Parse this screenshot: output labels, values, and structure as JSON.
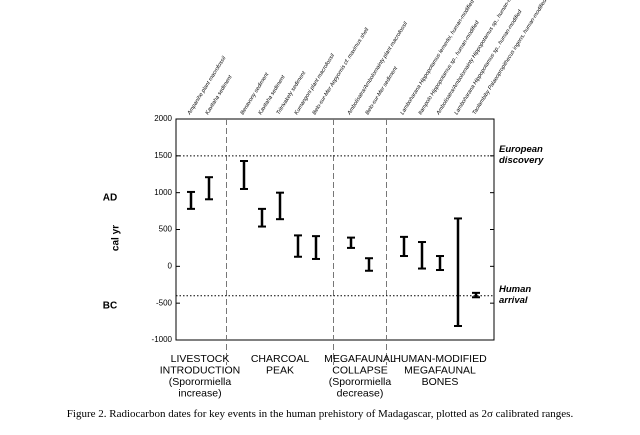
{
  "chart_data": {
    "type": "range",
    "categories": [
      "Ampanihe plant macrofossil",
      "Kavitaha sediment",
      "Benavony sediment",
      "Kavitaha sediment",
      "Tritrivakely sediment",
      "Kumangoni plant macrofossil",
      "Belo-sur-Mer Aepyornis cf. maximus shell",
      "Ambolisatra/Ambolomainty plant macrofossil",
      "Belo-sur-Mer sediment",
      "Lamboharana Hippopotamus lemerlei, human-modified",
      "Itampolo Hippopotamus sp., human-modified",
      "Ambolisatra/Ambolomainty Hippopotamus sp., human-modified",
      "Lamboharana Hippopotamus sp., human-modified",
      "Taolambiby Palaeopropithecus ingens, human-modified"
    ],
    "low": [
      780,
      910,
      1050,
      540,
      640,
      130,
      100,
      250,
      -60,
      140,
      -30,
      -50,
      -810,
      -420
    ],
    "high": [
      1010,
      1210,
      1430,
      780,
      1000,
      420,
      410,
      390,
      110,
      400,
      330,
      140,
      650,
      -360
    ],
    "color": "#000000",
    "ylim": [
      -1000,
      2000
    ],
    "yticks": [
      -1000,
      -500,
      0,
      500,
      1000,
      1500,
      2000
    ],
    "y_label": "cal yr",
    "era_labels": [
      "AD",
      "BC"
    ],
    "groups": [
      {
        "label": [
          "LIVESTOCK",
          "INTRODUCTION",
          "(Sporormiella",
          "increase)"
        ],
        "size": 2
      },
      {
        "label": [
          "CHARCOAL",
          "PEAK"
        ],
        "size": 5
      },
      {
        "label": [
          "MEGAFAUNAL",
          "COLLAPSE",
          "(Sporormiella",
          "decrease)"
        ],
        "size": 2
      },
      {
        "label": [
          "HUMAN-MODIFIED",
          "MEGAFAUNAL",
          "BONES"
        ],
        "size": 5
      }
    ],
    "reference_lines": [
      {
        "value": 1500,
        "label": [
          "European",
          "discovery"
        ]
      },
      {
        "value": -400,
        "label": [
          "Human",
          "arrival"
        ]
      }
    ],
    "caption": "Figure 2. Radiocarbon dates for key events in the human prehistory of Madagascar, plotted as 2σ calibrated ranges."
  }
}
